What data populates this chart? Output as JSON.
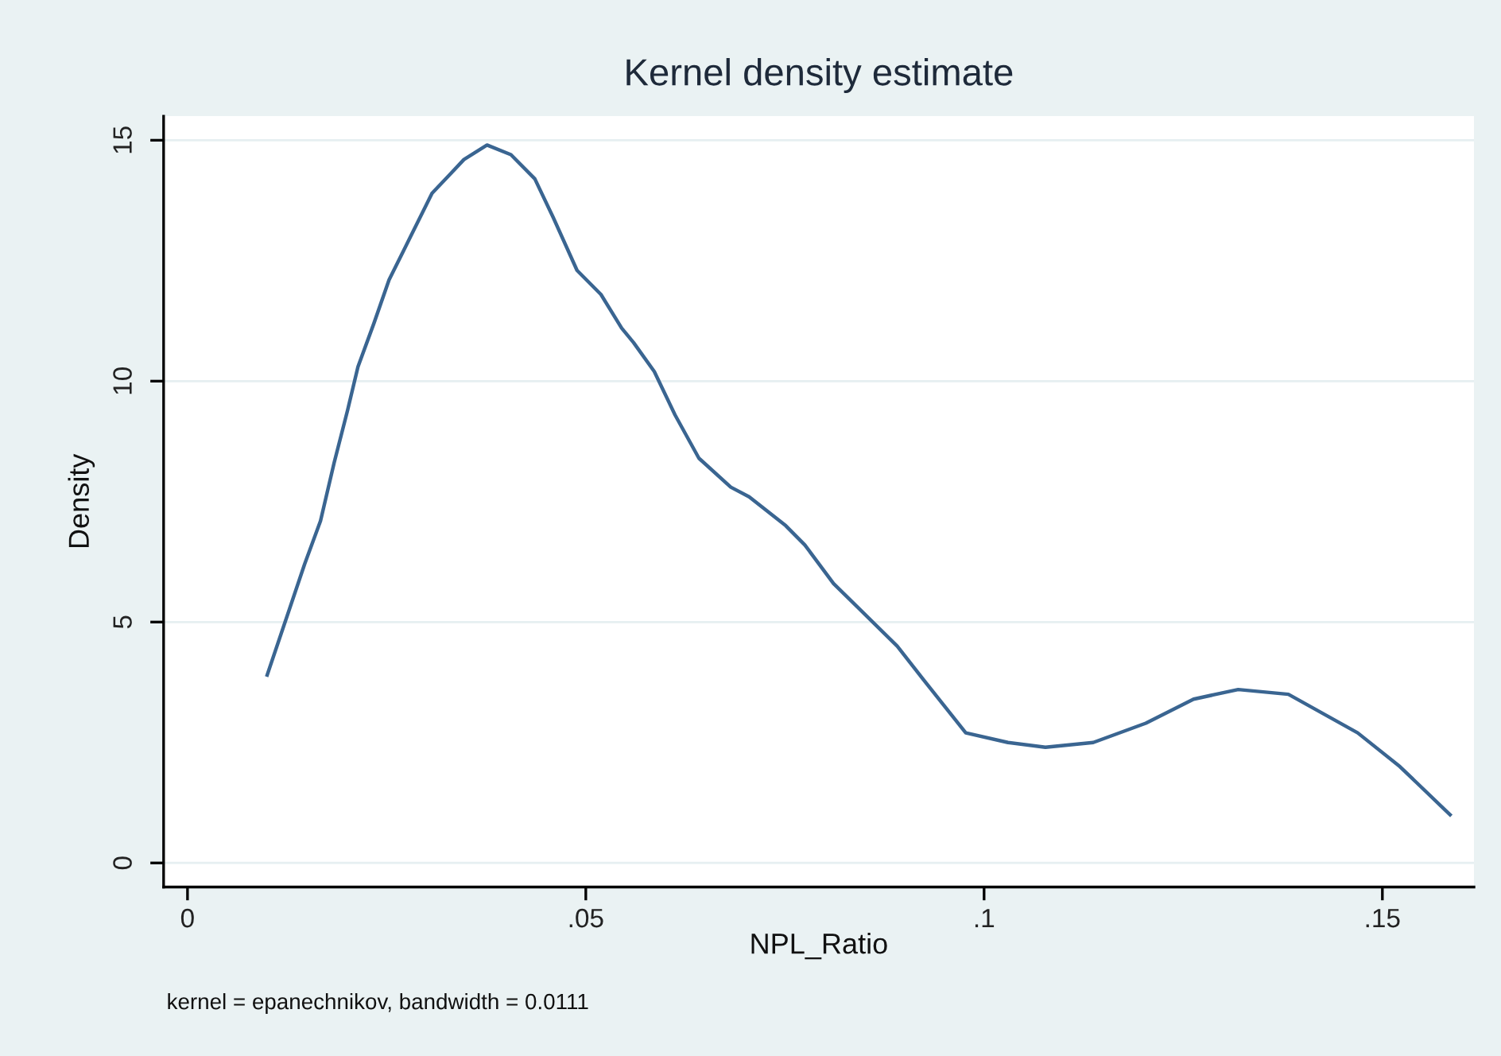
{
  "chart_data": {
    "type": "line",
    "title": "Kernel density estimate",
    "xlabel": "NPL_Ratio",
    "ylabel": "Density",
    "annotations": [
      "kernel = epanechnikov, bandwidth = 0.0111"
    ],
    "x": [
      0.01,
      0.0147,
      0.0167,
      0.0184,
      0.0201,
      0.0214,
      0.0234,
      0.0253,
      0.028,
      0.0307,
      0.033,
      0.0347,
      0.0376,
      0.0406,
      0.0436,
      0.0459,
      0.0489,
      0.0519,
      0.0545,
      0.056,
      0.0586,
      0.0612,
      0.0642,
      0.0682,
      0.0705,
      0.0751,
      0.0775,
      0.0811,
      0.0891,
      0.0924,
      0.0977,
      0.103,
      0.1077,
      0.1137,
      0.1203,
      0.1263,
      0.1319,
      0.1382,
      0.1469,
      0.1522,
      0.1585
    ],
    "series": [
      {
        "color": "#3a6591",
        "values": [
          3.9,
          6.2,
          7.1,
          8.3,
          9.4,
          10.3,
          11.2,
          12.1,
          13.0,
          13.9,
          14.3,
          14.6,
          14.9,
          14.7,
          14.2,
          13.4,
          12.3,
          11.8,
          11.1,
          10.8,
          10.2,
          9.3,
          8.4,
          7.8,
          7.6,
          7.0,
          6.6,
          5.8,
          4.5,
          3.8,
          2.7,
          2.5,
          2.4,
          2.5,
          2.9,
          3.4,
          3.6,
          3.5,
          2.7,
          2.0,
          1.0
        ]
      }
    ],
    "xlim": [
      -0.003,
      0.1615
    ],
    "ylim": [
      -0.5,
      15.5
    ],
    "xticks": [
      0,
      {
        "value": 0.05,
        "label": ".05"
      },
      {
        "value": 0.1,
        "label": ".1"
      },
      {
        "value": 0.15,
        "label": ".15"
      }
    ],
    "yticks": [
      0,
      5,
      10,
      15
    ],
    "grid": "y",
    "marker": "none",
    "line_style": "solid"
  }
}
